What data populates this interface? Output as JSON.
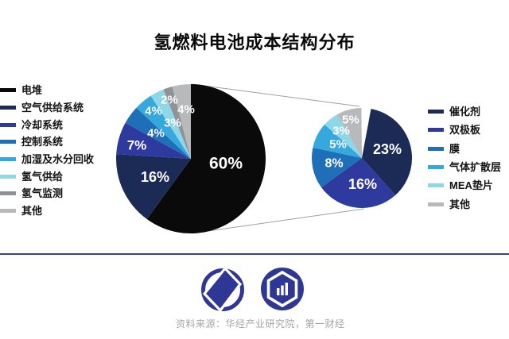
{
  "title": "氢燃料电池成本结构分布",
  "source_note": "资料来源：华经产业研究院，第一财经",
  "divider_color": "#3c3f96",
  "connector_color": "#a0a0a0",
  "logo_color": "#2e3794",
  "logos": {
    "left": "yicai-circle-parallelogram-logo",
    "right": "huajing-hexagon-barchart-logo"
  },
  "chart_data": [
    {
      "type": "pie",
      "id": "fuel-cell-system-cost",
      "legend_position": "left",
      "start_angle_deg": 0,
      "total": 100,
      "categories": [
        "电堆",
        "空气供给系统",
        "冷却系统",
        "控制系统",
        "加湿及水分回收",
        "氢气供给",
        "氢气监测",
        "其他"
      ],
      "values": [
        60,
        16,
        7,
        4,
        4,
        3,
        2,
        4
      ],
      "labels": [
        "60%",
        "16%",
        "7%",
        "4%",
        "4%",
        "3%",
        "2%",
        "4%"
      ],
      "colors": [
        "#0a0a0a",
        "#1c2b55",
        "#2e3a9e",
        "#1e6fb7",
        "#35a9dd",
        "#8ed7e6",
        "#909296",
        "#b7b9bb"
      ]
    },
    {
      "type": "pie",
      "id": "stack-cost-breakdown",
      "legend_position": "right",
      "start_angle_deg": 0,
      "total": 60,
      "categories": [
        "催化剂",
        "双极板",
        "膜",
        "气体扩散层",
        "MEA垫片",
        "其他"
      ],
      "values": [
        23,
        16,
        8,
        5,
        3,
        5
      ],
      "labels": [
        "23%",
        "16%",
        "8%",
        "5%",
        "3%",
        "5%"
      ],
      "colors": [
        "#1c2b55",
        "#2e3a9e",
        "#1e6fb7",
        "#35a9dd",
        "#8ed7e6",
        "#b7b9bb"
      ]
    }
  ]
}
